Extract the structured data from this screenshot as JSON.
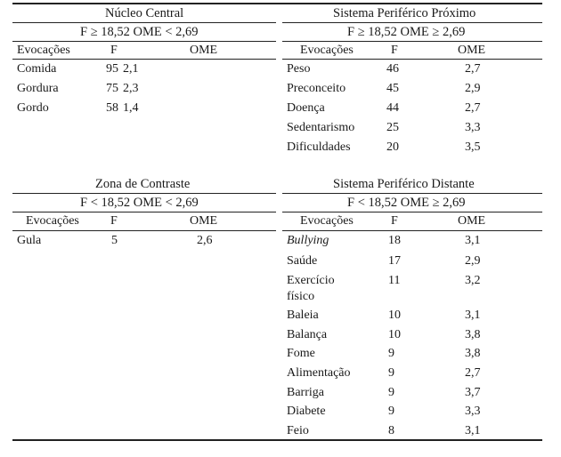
{
  "quadrants": {
    "nucleo": {
      "title": "Núcleo Central",
      "condition": "F ≥ 18,52 OME < 2,69",
      "headers": [
        "Evocações",
        "F",
        "OME"
      ],
      "rows": [
        {
          "word": "Comida",
          "f": "95",
          "ome": "2,1"
        },
        {
          "word": "Gordura",
          "f": "75",
          "ome": "2,3"
        },
        {
          "word": "Gordo",
          "f": "58",
          "ome": "1,4"
        }
      ]
    },
    "proximo": {
      "title": "Sistema Periférico Próximo",
      "condition": "F ≥ 18,52 OME ≥ 2,69",
      "headers": [
        "Evocações",
        "F",
        "OME"
      ],
      "rows": [
        {
          "word": "Peso",
          "f": "46",
          "ome": "2,7"
        },
        {
          "word": "Preconceito",
          "f": "45",
          "ome": "2,9"
        },
        {
          "word": "Doença",
          "f": "44",
          "ome": "2,7"
        },
        {
          "word": "Sedentarismo",
          "f": "25",
          "ome": "3,3"
        },
        {
          "word": "Dificuldades",
          "f": "20",
          "ome": "3,5"
        }
      ]
    },
    "contraste": {
      "title": "Zona de Contraste",
      "condition": "F < 18,52 OME < 2,69",
      "headers": [
        "Evocações",
        "F",
        "OME"
      ],
      "rows": [
        {
          "word": "Gula",
          "f": "5",
          "ome": "2,6"
        }
      ]
    },
    "distante": {
      "title": "Sistema Periférico Distante",
      "condition": "F < 18,52 OME ≥ 2,69",
      "headers": [
        "Evocações",
        "F",
        "OME"
      ],
      "rows": [
        {
          "word": "Bullying",
          "f": "18",
          "ome": "3,1",
          "italic": true
        },
        {
          "word": "Saúde",
          "f": "17",
          "ome": "2,9"
        },
        {
          "word_line1": "Exercício",
          "word_line2": "físico",
          "f": "11",
          "ome": "3,2"
        },
        {
          "word": "Baleia",
          "f": "10",
          "ome": "3,1"
        },
        {
          "word": "Balança",
          "f": "10",
          "ome": "3,8"
        },
        {
          "word": "Fome",
          "f": "9",
          "ome": "3,8"
        },
        {
          "word": "Alimentação",
          "f": "9",
          "ome": "2,7"
        },
        {
          "word": "Barriga",
          "f": "9",
          "ome": "3,7"
        },
        {
          "word": "Diabete",
          "f": "9",
          "ome": "3,3"
        },
        {
          "word": "Feio",
          "f": "8",
          "ome": "3,1"
        }
      ]
    }
  }
}
